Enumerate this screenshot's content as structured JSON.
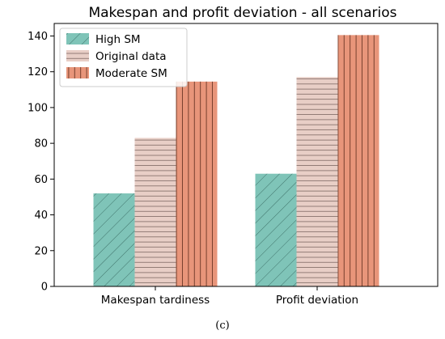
{
  "chart_data": {
    "type": "bar",
    "title": "Makespan and profit deviation - all scenarios",
    "categories": [
      "Makespan tardiness",
      "Profit deviation"
    ],
    "series": [
      {
        "name": "High SM",
        "values": [
          52,
          63
        ],
        "color": "#7fc4b8",
        "hatch": "diagonal"
      },
      {
        "name": "Original data",
        "values": [
          83,
          117
        ],
        "color": "#e8cec6",
        "hatch": "horizontal"
      },
      {
        "name": "Moderate SM",
        "values": [
          114.5,
          140.5
        ],
        "color": "#e8957a",
        "hatch": "vertical"
      }
    ],
    "ylim": [
      0,
      147
    ],
    "yticks": [
      0,
      20,
      40,
      60,
      80,
      100,
      120,
      140
    ],
    "legend_position": "top-left",
    "grid": false
  },
  "caption": "(c)"
}
